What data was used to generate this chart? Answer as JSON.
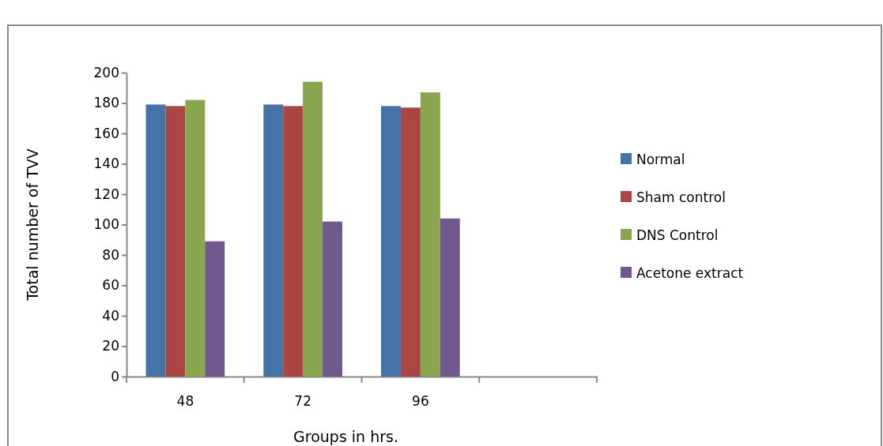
{
  "chart_data": {
    "type": "bar",
    "xlabel": "Groups in hrs.",
    "ylabel": "Total number of TVV",
    "categories": [
      "48",
      "72",
      "96",
      null
    ],
    "series": [
      {
        "name": "Normal",
        "color": "#4572a7",
        "values": [
          179,
          179,
          178,
          null
        ]
      },
      {
        "name": "Sham control",
        "color": "#aa4643",
        "values": [
          178,
          178,
          177,
          null
        ]
      },
      {
        "name": "DNS Control",
        "color": "#89a54e",
        "values": [
          182,
          194,
          187,
          null
        ]
      },
      {
        "name": "Acetone extract",
        "color": "#71588f",
        "values": [
          89,
          102,
          104,
          null
        ]
      }
    ],
    "ylim": [
      0,
      200
    ],
    "yticks": [
      0,
      20,
      40,
      60,
      80,
      100,
      120,
      140,
      160,
      180,
      200
    ],
    "grid": false,
    "legend": "right"
  }
}
